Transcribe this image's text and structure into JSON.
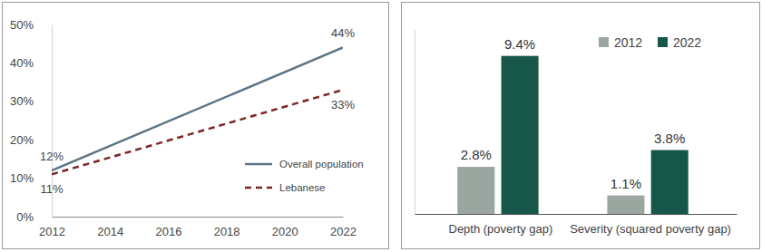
{
  "chart_data": [
    {
      "type": "line",
      "x": [
        2012,
        2022
      ],
      "xlim": [
        2012,
        2022
      ],
      "xticks": [
        2012,
        2014,
        2016,
        2018,
        2020,
        2022
      ],
      "ylim": [
        0,
        50
      ],
      "yticks": [
        {
          "value": 0,
          "label": "0%"
        },
        {
          "value": 10,
          "label": "10%"
        },
        {
          "value": 20,
          "label": "20%"
        },
        {
          "value": 30,
          "label": "30%"
        },
        {
          "value": 40,
          "label": "40%"
        },
        {
          "value": 50,
          "label": "50%"
        }
      ],
      "legend": "lower right",
      "data_labels": true,
      "series": [
        {
          "name": "Overall population",
          "color": "#5d7382",
          "line_style": "solid",
          "values": [
            12,
            44
          ],
          "value_labels": [
            "12%",
            "44%"
          ]
        },
        {
          "name": "Lebanese",
          "color": "#7b2525",
          "line_style": "dashed",
          "values": [
            11,
            33
          ],
          "value_labels": [
            "11%",
            "33%"
          ]
        }
      ]
    },
    {
      "type": "bar",
      "categories": [
        "Depth (poverty gap)",
        "Severity (squared poverty gap)"
      ],
      "ylim": [
        0,
        11
      ],
      "tick_labels": "x",
      "legend": "upper right",
      "data_labels": true,
      "series": [
        {
          "name": "2012",
          "color": "#9ba6a1",
          "values": [
            2.8,
            1.1
          ],
          "value_labels": [
            "2.8%",
            "1.1%"
          ]
        },
        {
          "name": "2022",
          "color": "#17574a",
          "values": [
            9.4,
            3.8
          ],
          "value_labels": [
            "9.4%",
            "3.8%"
          ]
        }
      ]
    }
  ]
}
